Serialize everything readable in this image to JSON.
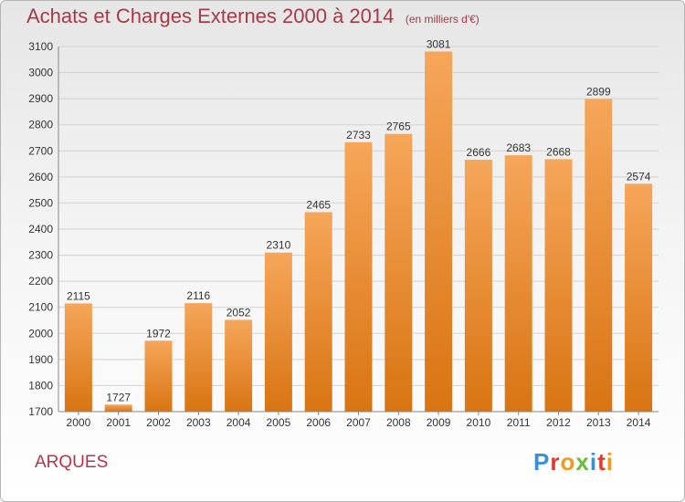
{
  "header": {
    "title": "Achats et Charges Externes 2000 à 2014",
    "unit": "(en milliers d'€)"
  },
  "footer": {
    "place": "ARQUES",
    "brand": "Proxiti",
    "brand_letter_colors": [
      "#3a8fd6",
      "#e5372e",
      "#f39a1e",
      "#6abb39",
      "#3a8fd6",
      "#e5372e",
      "#f39a1e"
    ]
  },
  "colors": {
    "bar_top": "#f6a65a",
    "bar_bottom": "#d97412",
    "grid": "#d2d2d2",
    "text": "#333333",
    "title": "#a63a48"
  },
  "chart_data": {
    "type": "bar",
    "categories": [
      "2000",
      "2001",
      "2002",
      "2003",
      "2004",
      "2005",
      "2006",
      "2007",
      "2008",
      "2009",
      "2010",
      "2011",
      "2012",
      "2013",
      "2014"
    ],
    "values": [
      2115,
      1727,
      1972,
      2116,
      2052,
      2310,
      2465,
      2733,
      2765,
      3081,
      2666,
      2683,
      2668,
      2899,
      2574
    ],
    "ylim": [
      1700,
      3100
    ],
    "yticks": [
      1700,
      1800,
      1900,
      2000,
      2100,
      2200,
      2300,
      2400,
      2500,
      2600,
      2700,
      2800,
      2900,
      3000,
      3100
    ],
    "grid": true,
    "legend": "none"
  }
}
